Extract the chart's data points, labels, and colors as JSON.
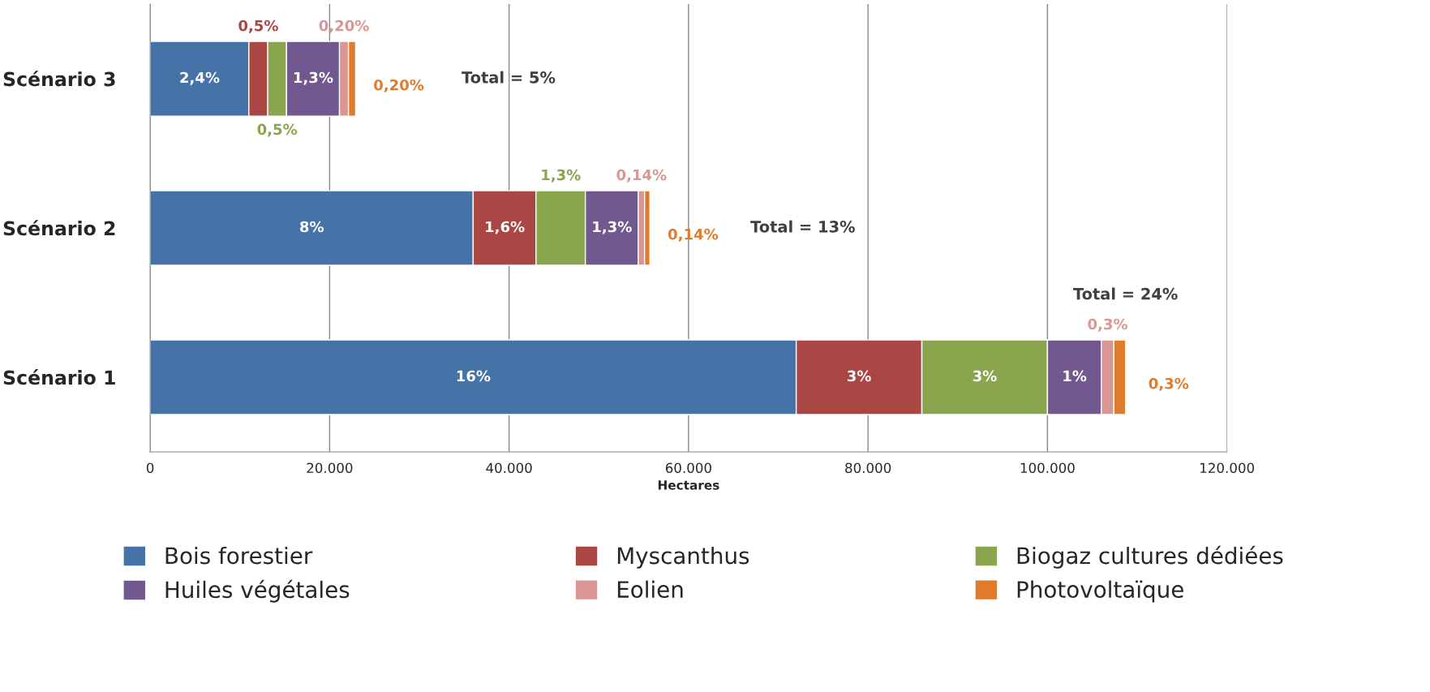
{
  "chart_data": {
    "type": "bar",
    "orientation": "horizontal",
    "stacked": true,
    "categories": [
      "Scénario 3",
      "Scénario 2",
      "Scénario 1"
    ],
    "xlabel": "Hectares",
    "xlim": [
      0,
      120000
    ],
    "xticks": [
      0,
      {
        "value": 20000,
        "label": "20.000"
      },
      {
        "value": 40000,
        "label": "40.000"
      },
      {
        "value": 60000,
        "label": "60.000"
      },
      {
        "value": 80000,
        "label": "80.000"
      },
      {
        "value": 100000,
        "label": "100.000"
      },
      {
        "value": 120000,
        "label": "120.000"
      }
    ],
    "grid": "x",
    "legend": "bottom",
    "series": [
      {
        "name": "Bois forestier",
        "color": "#4572a7",
        "values": [
          11000,
          36000,
          72000
        ]
      },
      {
        "name": "Myscanthus",
        "color": "#aa4643",
        "values": [
          2100,
          7000,
          14000
        ]
      },
      {
        "name": "Biogaz cultures dédiées",
        "color": "#89a54e",
        "values": [
          2100,
          5500,
          14000
        ]
      },
      {
        "name": "Huiles végétales",
        "color": "#71588f",
        "values": [
          5900,
          5900,
          6000
        ]
      },
      {
        "name": "Eolien",
        "color": "#d99694",
        "values": [
          1000,
          700,
          1400
        ]
      },
      {
        "name": "Photovoltaïque",
        "color": "#e07b2c",
        "values": [
          800,
          600,
          1300
        ]
      }
    ],
    "annotations": [
      "2,4%",
      "0,5%",
      "0,5%",
      "1,3%",
      "0,20%",
      "0,20%",
      "Total = 5%",
      "8%",
      "1,6%",
      "1,3%",
      "1,3%",
      "0,14%",
      "0,14%",
      "Total = 13%",
      "16%",
      "3%",
      "3%",
      "1%",
      "0,3%",
      "0,3%",
      "Total = 24%"
    ]
  }
}
